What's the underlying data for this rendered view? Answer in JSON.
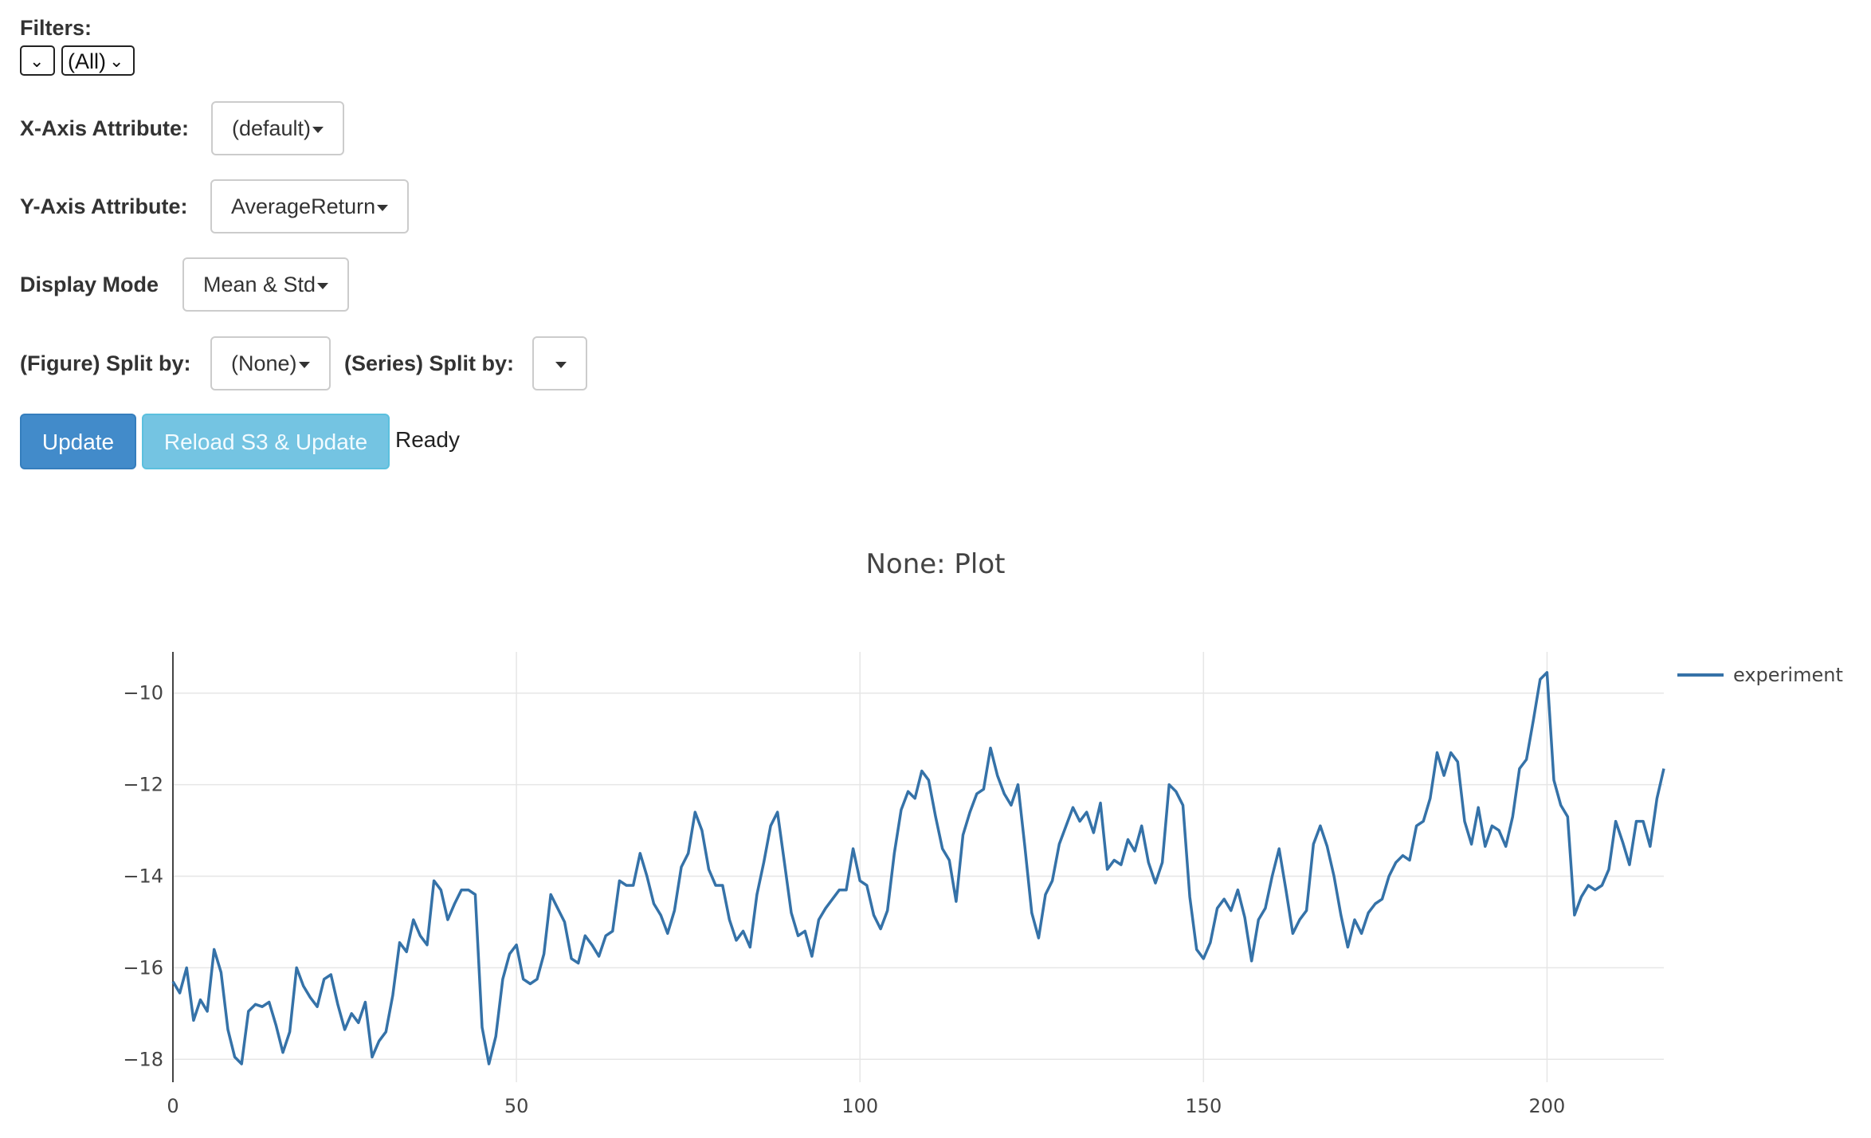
{
  "filters": {
    "label": "Filters:",
    "first_select_value": "",
    "second_select_value": "(All)"
  },
  "x_axis": {
    "label": "X-Axis Attribute:",
    "value": "(default)"
  },
  "y_axis": {
    "label": "Y-Axis Attribute:",
    "value": "AverageReturn"
  },
  "display_mode": {
    "label": "Display Mode",
    "value": "Mean & Std"
  },
  "figure_split": {
    "label": "(Figure) Split by:",
    "value": "(None)"
  },
  "series_split": {
    "label": "(Series) Split by:",
    "value": ""
  },
  "buttons": {
    "update": "Update",
    "reload": "Reload S3 & Update"
  },
  "status": "Ready",
  "colors": {
    "series": "#3572a8",
    "update_button": "#428bca",
    "reload_button": "#74c4e2"
  },
  "chart_data": {
    "type": "line",
    "title": "None: Plot",
    "xlabel": "",
    "ylabel": "",
    "xlim": [
      0,
      217
    ],
    "ylim": [
      -18.5,
      -9.1
    ],
    "x_ticks": [
      0,
      50,
      100,
      150,
      200
    ],
    "y_ticks": [
      -10,
      -12,
      -14,
      -16,
      -18
    ],
    "grid": true,
    "legend_position": "top-right",
    "series": [
      {
        "name": "experiment",
        "values": [
          -16.3,
          -16.55,
          -16.0,
          -17.15,
          -16.7,
          -16.95,
          -15.6,
          -16.1,
          -17.35,
          -17.95,
          -18.1,
          -16.95,
          -16.8,
          -16.85,
          -16.75,
          -17.25,
          -17.85,
          -17.4,
          -16.0,
          -16.4,
          -16.65,
          -16.85,
          -16.25,
          -16.15,
          -16.8,
          -17.35,
          -17.0,
          -17.2,
          -16.75,
          -17.95,
          -17.6,
          -17.4,
          -16.6,
          -15.45,
          -15.65,
          -14.95,
          -15.3,
          -15.5,
          -14.1,
          -14.3,
          -14.95,
          -14.6,
          -14.3,
          -14.3,
          -14.4,
          -17.3,
          -18.1,
          -17.5,
          -16.25,
          -15.7,
          -15.5,
          -16.25,
          -16.35,
          -16.25,
          -15.7,
          -14.4,
          -14.7,
          -15.0,
          -15.8,
          -15.9,
          -15.3,
          -15.5,
          -15.75,
          -15.3,
          -15.2,
          -14.1,
          -14.2,
          -14.2,
          -13.5,
          -14.0,
          -14.6,
          -14.85,
          -15.25,
          -14.75,
          -13.8,
          -13.5,
          -12.6,
          -13.0,
          -13.85,
          -14.2,
          -14.2,
          -14.95,
          -15.4,
          -15.2,
          -15.55,
          -14.4,
          -13.7,
          -12.9,
          -12.6,
          -13.7,
          -14.8,
          -15.3,
          -15.2,
          -15.75,
          -14.95,
          -14.7,
          -14.5,
          -14.3,
          -14.3,
          -13.4,
          -14.1,
          -14.2,
          -14.85,
          -15.15,
          -14.75,
          -13.5,
          -12.55,
          -12.15,
          -12.3,
          -11.7,
          -11.9,
          -12.7,
          -13.4,
          -13.65,
          -14.55,
          -13.1,
          -12.6,
          -12.2,
          -12.1,
          -11.2,
          -11.8,
          -12.2,
          -12.45,
          -12.0,
          -13.35,
          -14.8,
          -15.35,
          -14.4,
          -14.1,
          -13.3,
          -12.9,
          -12.5,
          -12.8,
          -12.6,
          -13.05,
          -12.4,
          -13.85,
          -13.65,
          -13.75,
          -13.2,
          -13.45,
          -12.9,
          -13.7,
          -14.15,
          -13.7,
          -12.0,
          -12.15,
          -12.45,
          -14.45,
          -15.6,
          -15.8,
          -15.45,
          -14.7,
          -14.5,
          -14.75,
          -14.3,
          -14.9,
          -15.85,
          -14.95,
          -14.7,
          -14.0,
          -13.4,
          -14.3,
          -15.25,
          -14.95,
          -14.75,
          -13.3,
          -12.9,
          -13.35,
          -14.0,
          -14.85,
          -15.55,
          -14.95,
          -15.25,
          -14.8,
          -14.6,
          -14.5,
          -14.0,
          -13.7,
          -13.55,
          -13.65,
          -12.9,
          -12.8,
          -12.3,
          -11.3,
          -11.8,
          -11.3,
          -11.5,
          -12.8,
          -13.3,
          -12.5,
          -13.35,
          -12.9,
          -13.0,
          -13.35,
          -12.7,
          -11.65,
          -11.45,
          -10.6,
          -9.7,
          -9.55,
          -11.9,
          -12.45,
          -12.7,
          -14.85,
          -14.45,
          -14.2,
          -14.3,
          -14.2,
          -13.85,
          -12.8,
          -13.25,
          -13.75,
          -12.8,
          -12.8,
          -13.35,
          -12.3,
          -11.65
        ]
      }
    ]
  }
}
